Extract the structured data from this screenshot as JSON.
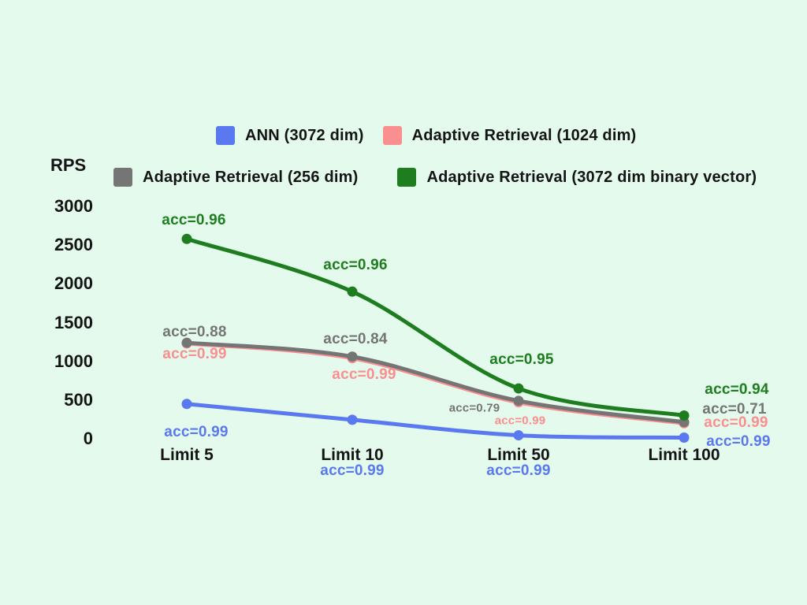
{
  "background": "#E3FAED",
  "text_color": "#141414",
  "chart_data": {
    "type": "line",
    "ylabel": "RPS",
    "categories": [
      "Limit 5",
      "Limit 10",
      "Limit 50",
      "Limit 100"
    ],
    "yticks": [
      3000,
      2500,
      2000,
      1500,
      1000,
      500,
      0
    ],
    "ylim": [
      0,
      3000
    ],
    "grid": false,
    "legend_position": "top",
    "legend_rows": [
      [
        0,
        1
      ],
      [
        2,
        3
      ]
    ],
    "draw_order": [
      1,
      2,
      3,
      0
    ],
    "series": [
      {
        "name": "ANN (3072 dim)",
        "color": "#5A78F0",
        "values": [
          450,
          245,
          45,
          15
        ],
        "annotations": [
          {
            "label": "acc=0.99",
            "dx": 12,
            "dy": 36,
            "size": "normal"
          },
          {
            "label": "acc=0.99",
            "dx": 0,
            "dy": 65,
            "size": "normal"
          },
          {
            "label": "acc=0.99",
            "dx": 0,
            "dy": 45,
            "size": "normal"
          },
          {
            "label": "acc=0.99",
            "dx": 69,
            "dy": 5,
            "size": "normal"
          }
        ]
      },
      {
        "name": "Adaptive Retrieval (1024 dim)",
        "color": "#FB8F8F",
        "values": [
          1230,
          1040,
          470,
          200
        ],
        "annotations": [
          {
            "label": "acc=0.99",
            "dx": 10,
            "dy": 14,
            "size": "normal"
          },
          {
            "label": "acc=0.99",
            "dx": 15,
            "dy": 21,
            "size": "normal"
          },
          {
            "label": "acc=0.99",
            "dx": 2,
            "dy": 23,
            "size": "small"
          },
          {
            "label": "acc=0.99",
            "dx": 66,
            "dy": 0,
            "size": "normal"
          }
        ]
      },
      {
        "name": "Adaptive Retrieval (256 dim)",
        "color": "#757575",
        "values": [
          1240,
          1060,
          490,
          215
        ],
        "annotations": [
          {
            "label": "acc=0.88",
            "dx": 10,
            "dy": -13,
            "size": "normal"
          },
          {
            "label": "acc=0.84",
            "dx": 4,
            "dy": -22,
            "size": "normal"
          },
          {
            "label": "acc=0.79",
            "dx": -56,
            "dy": 9,
            "size": "small"
          },
          {
            "label": "acc=0.71",
            "dx": 64,
            "dy": -16,
            "size": "normal"
          }
        ]
      },
      {
        "name": "Adaptive Retrieval (3072 dim binary vector)",
        "color": "#1E7D1E",
        "values": [
          2580,
          1900,
          650,
          300
        ],
        "annotations": [
          {
            "label": "acc=0.96",
            "dx": 9,
            "dy": -23,
            "size": "normal"
          },
          {
            "label": "acc=0.96",
            "dx": 4,
            "dy": -33,
            "size": "normal"
          },
          {
            "label": "acc=0.95",
            "dx": 4,
            "dy": -36,
            "size": "normal"
          },
          {
            "label": "acc=0.94",
            "dx": 67,
            "dy": -33,
            "size": "normal"
          }
        ]
      }
    ]
  }
}
